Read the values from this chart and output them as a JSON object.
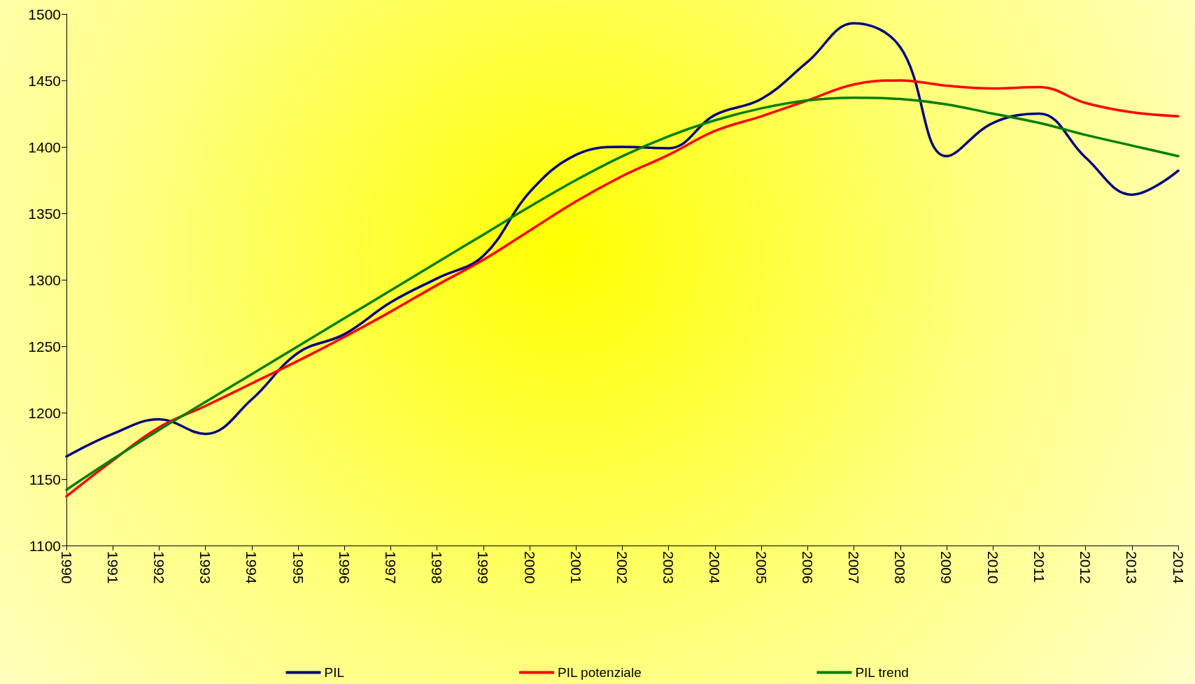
{
  "chart_data": {
    "type": "line",
    "categories": [
      "1990",
      "1991",
      "1992",
      "1993",
      "1994",
      "1995",
      "1996",
      "1997",
      "1998",
      "1999",
      "2000",
      "2001",
      "2002",
      "2003",
      "2004",
      "2005",
      "2006",
      "2007",
      "2008",
      "2009",
      "2010",
      "2011",
      "2012",
      "2013",
      "2014"
    ],
    "series": [
      {
        "name": "PIL",
        "color": "#000080",
        "values": [
          1167,
          1184,
          1195,
          1184,
          1210,
          1245,
          1259,
          1283,
          1301,
          1318,
          1366,
          1394,
          1400,
          1399,
          1424,
          1436,
          1464,
          1493,
          1475,
          1393,
          1418,
          1425,
          1392,
          1364,
          1382
        ]
      },
      {
        "name": "PIL potenziale",
        "color": "#ff0000",
        "values": [
          1137,
          1164,
          1189,
          1205,
          1222,
          1239,
          1257,
          1276,
          1296,
          1315,
          1337,
          1359,
          1378,
          1394,
          1412,
          1423,
          1435,
          1447,
          1450,
          1446,
          1444,
          1445,
          1433,
          1426,
          1423
        ]
      },
      {
        "name": "PIL trend",
        "color": "#008000",
        "values": [
          1142,
          1165,
          1187,
          1208,
          1229,
          1250,
          1271,
          1292,
          1313,
          1334,
          1355,
          1375,
          1393,
          1408,
          1420,
          1429,
          1435,
          1437,
          1436,
          1432,
          1425,
          1418,
          1409,
          1401,
          1393
        ]
      }
    ],
    "ylim": [
      1100,
      1500
    ],
    "yticks": [
      1100,
      1150,
      1200,
      1250,
      1300,
      1350,
      1400,
      1450,
      1500
    ],
    "grid": false,
    "legend": "bottom",
    "marker": "none",
    "line_style": "solid"
  }
}
